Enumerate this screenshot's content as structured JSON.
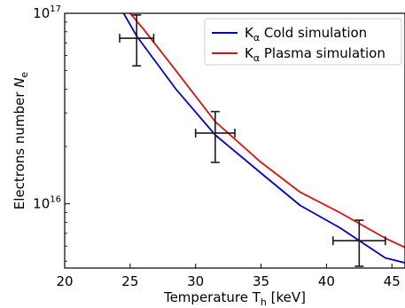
{
  "chart_data": {
    "type": "line",
    "xlabel": "Temperature T",
    "xlabel_sub": "h",
    "xlabel_unit": " [keV]",
    "ylabel": "Electrons number ",
    "ylabel_sym": "N",
    "ylabel_sub": "e",
    "xlim": [
      20,
      46
    ],
    "ylim": [
      4600000000000000.0,
      1e+17
    ],
    "yscale": "log",
    "grid": false,
    "legend_position": "top-right",
    "x_ticks": [
      20,
      25,
      30,
      35,
      40,
      45
    ],
    "x_tick_labels": [
      "20",
      "25",
      "30",
      "35",
      "40",
      "45"
    ],
    "y_ticks": [
      1e+16,
      1e+17
    ],
    "y_tick_labels": [
      {
        "base": "10",
        "exp": "16"
      },
      {
        "base": "10",
        "exp": "17"
      }
    ],
    "series": [
      {
        "name_main": "K",
        "name_sub": "α",
        "name_rest": " Cold simulation",
        "color": "#0000cc",
        "x": [
          24.5,
          25.5,
          28.5,
          31.5,
          35.0,
          38.0,
          41.0,
          44.5,
          46.0
        ],
        "y": [
          1e+17,
          7.6e+16,
          4e+16,
          2.3e+16,
          1.45e+16,
          9800000000000000.0,
          7500000000000000.0,
          5200000000000000.0,
          4900000000000000.0
        ]
      },
      {
        "name_main": "K",
        "name_sub": "α",
        "name_rest": " Plasma simulation",
        "color": "#dd1111",
        "x": [
          25.0,
          26.0,
          28.5,
          31.5,
          35.0,
          38.0,
          41.0,
          44.5,
          46.0
        ],
        "y": [
          1e+17,
          8.3e+16,
          5e+16,
          2.7e+16,
          1.65e+16,
          1.15e+16,
          9000000000000000.0,
          6600000000000000.0,
          5900000000000000.0
        ]
      }
    ],
    "measurements": [
      {
        "x": 25.5,
        "y": 7.4e+16,
        "xerr": 1.3,
        "ylow": 5.3e+16,
        "yhigh": 9.8e+16
      },
      {
        "x": 31.5,
        "y": 2.35e+16,
        "xerr": 1.5,
        "ylow": 1.65e+16,
        "yhigh": 3.05e+16
      },
      {
        "x": 42.5,
        "y": 6400000000000000.0,
        "xerr": 2.0,
        "ylow": 4700000000000000.0,
        "yhigh": 8200000000000000.0
      }
    ],
    "colors": {
      "errorbars": "#1a1a1a",
      "axes": "#000000"
    }
  }
}
